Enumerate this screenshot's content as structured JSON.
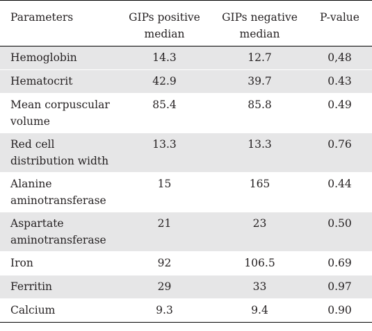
{
  "table": {
    "headers": {
      "parameters": "Parameters",
      "positive_line1": "GIPs positive",
      "positive_line2": "median",
      "negative_line1": "GIPs negative",
      "negative_line2": "median",
      "pvalue": "P-value"
    },
    "rows": [
      {
        "parameter": "Hemoglobin",
        "positive": "14.3",
        "negative": "12.7",
        "pvalue": "0,48"
      },
      {
        "parameter": "Hematocrit",
        "positive": "42.9",
        "negative": "39.7",
        "pvalue": "0.43"
      },
      {
        "parameter": "Mean corpuscular volume",
        "positive": "85.4",
        "negative": "85.8",
        "pvalue": "0.49"
      },
      {
        "parameter": "Red cell distribution width",
        "positive": "13.3",
        "negative": "13.3",
        "pvalue": "0.76"
      },
      {
        "parameter": "Alanine aminotransferase",
        "positive": "15",
        "negative": "165",
        "pvalue": "0.44"
      },
      {
        "parameter": "Aspartate aminotransferase",
        "positive": "21",
        "negative": "23",
        "pvalue": "0.50"
      },
      {
        "parameter": "Iron",
        "positive": "92",
        "negative": "106.5",
        "pvalue": "0.69"
      },
      {
        "parameter": "Ferritin",
        "positive": "29",
        "negative": "33",
        "pvalue": "0.97"
      },
      {
        "parameter": "Calcium",
        "positive": "9.3",
        "negative": "9.4",
        "pvalue": "0.90"
      }
    ]
  },
  "colors": {
    "shaded_row": "#e6e6e7",
    "text": "#231f20",
    "rule": "#000000"
  }
}
